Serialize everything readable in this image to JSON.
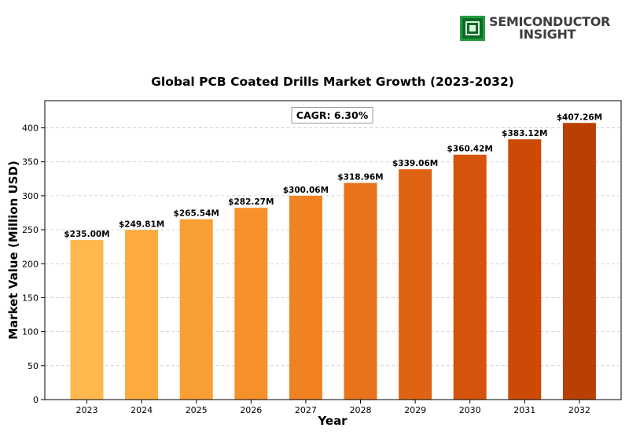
{
  "logo": {
    "line1": "SEMICONDUCTOR",
    "line2": "INSIGHT",
    "icon": "chip-icon",
    "color": "#1e9e3e"
  },
  "chart_data": {
    "type": "bar",
    "title": "Global PCB Coated Drills Market Growth (2023-2032)",
    "xlabel": "Year",
    "ylabel": "Market Value (Million USD)",
    "annotation": "CAGR: 6.30%",
    "categories": [
      "2023",
      "2024",
      "2025",
      "2026",
      "2027",
      "2028",
      "2029",
      "2030",
      "2031",
      "2032"
    ],
    "values": [
      235.0,
      249.81,
      265.54,
      282.27,
      300.06,
      318.96,
      339.06,
      360.42,
      383.12,
      407.26
    ],
    "value_labels": [
      "$235.00M",
      "$249.81M",
      "$265.54M",
      "$282.27M",
      "$300.06M",
      "$318.96M",
      "$339.06M",
      "$360.42M",
      "$383.12M",
      "$407.26M"
    ],
    "ylim": [
      0,
      440
    ],
    "yticks": [
      0,
      50,
      100,
      150,
      200,
      250,
      300,
      350,
      400
    ],
    "grid": true,
    "colors": [
      "#ffb84d",
      "#fdab3e",
      "#fa9f33",
      "#f6912a",
      "#f08222",
      "#e9731a",
      "#e06213",
      "#d6530c",
      "#cc4a05",
      "#b94002"
    ]
  }
}
